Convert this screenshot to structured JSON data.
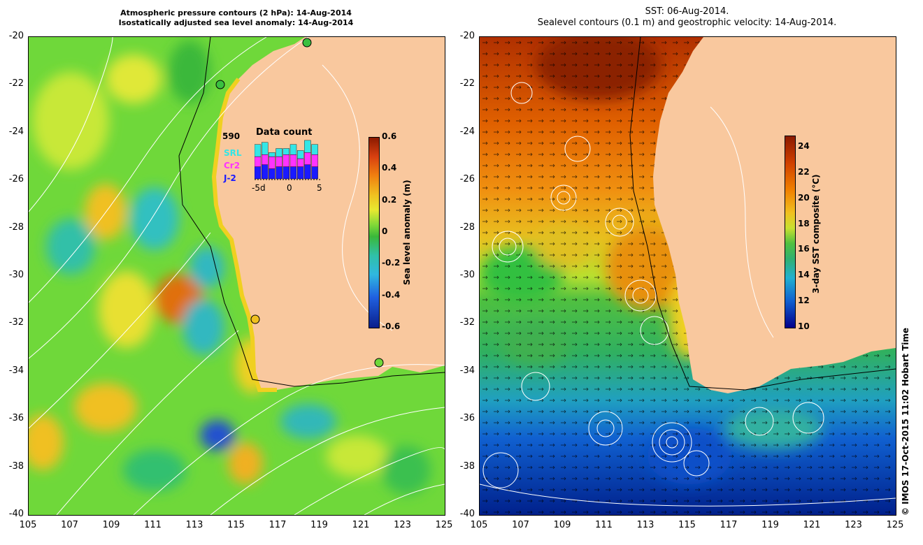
{
  "left_panel": {
    "title_line1": "Atmospheric pressure contours (2 hPa): 14-Aug-2014",
    "title_line2": "Isostatically adjusted sea level anomaly: 14-Aug-2014",
    "colorbar": {
      "label": "Sea level anomaly (m)",
      "ticks": [
        "0.6",
        "0.4",
        "0.2",
        "0",
        "-0.2",
        "-0.4",
        "-0.6"
      ],
      "range": [
        -0.6,
        0.6
      ]
    },
    "data_count": {
      "title": "Data count",
      "max_value": "590",
      "legend": [
        "SRL",
        "Cr2",
        "J-2"
      ],
      "legend_colors": [
        "#33e6e6",
        "#ff33ff",
        "#1a1aff"
      ],
      "axis_labels": [
        "-5d",
        "0",
        "5"
      ],
      "bars": [
        {
          "srl": 0.3,
          "cr2": 0.25,
          "j2": 0.3
        },
        {
          "srl": 0.3,
          "cr2": 0.25,
          "j2": 0.35
        },
        {
          "srl": 0.1,
          "cr2": 0.3,
          "j2": 0.25
        },
        {
          "srl": 0.2,
          "cr2": 0.25,
          "j2": 0.3
        },
        {
          "srl": 0.15,
          "cr2": 0.3,
          "j2": 0.3
        },
        {
          "srl": 0.25,
          "cr2": 0.3,
          "j2": 0.3
        },
        {
          "srl": 0.2,
          "cr2": 0.2,
          "j2": 0.3
        },
        {
          "srl": 0.3,
          "cr2": 0.3,
          "j2": 0.35
        },
        {
          "srl": 0.25,
          "cr2": 0.3,
          "j2": 0.3
        }
      ]
    }
  },
  "right_panel": {
    "title_line1": "SST: 06-Aug-2014.",
    "title_line2": "Sealevel contours (0.1 m) and geostrophic velocity: 14-Aug-2014.",
    "colorbar": {
      "label": "3-day SST composite (°C)",
      "ticks": [
        "24",
        "22",
        "20",
        "18",
        "16",
        "14",
        "12",
        "10"
      ],
      "range": [
        10,
        25
      ]
    }
  },
  "axes": {
    "lat_labels": [
      "-20",
      "-22",
      "-24",
      "-26",
      "-28",
      "-30",
      "-32",
      "-34",
      "-36",
      "-38",
      "-40"
    ],
    "lon_labels": [
      "105",
      "107",
      "109",
      "111",
      "113",
      "115",
      "117",
      "119",
      "121",
      "123",
      "125"
    ],
    "lat_range": [
      -40,
      -20
    ],
    "lon_range": [
      105,
      125
    ]
  },
  "copyright": "© IMOS 17-Oct-2015 11:02 Hobart Time",
  "colors": {
    "land": "#f9c89e",
    "slaLow": "#0a1f8c",
    "slaHigh": "#8b1a00",
    "sstLow": "#00008b",
    "sstHigh": "#8b1a00"
  }
}
